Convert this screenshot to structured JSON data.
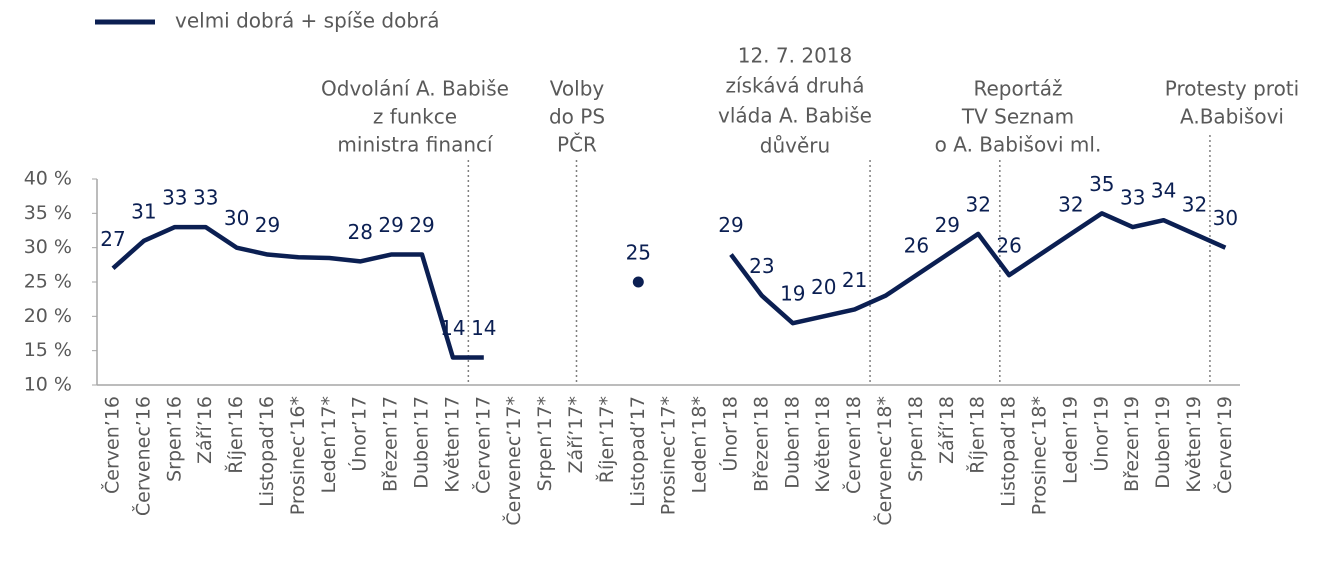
{
  "chart_data": {
    "type": "line",
    "categories": [
      "Červen’16",
      "Červenec’16",
      "Srpen’16",
      "Září’16",
      "Říjen’16",
      "Listopad’16",
      "Prosinec’16*",
      "Leden’17*",
      "Únor’17",
      "Březen’17",
      "Duben’17",
      "Květen’17",
      "Červen’17",
      "Červenec’17*",
      "Srpen’17*",
      "Září’17*",
      "Říjen’17*",
      "Listopad’17",
      "Prosinec’17*",
      "Leden’18*",
      "Únor’18",
      "Březen’18",
      "Duben’18",
      "Květen’18",
      "Červen’18",
      "Červenec’18*",
      "Srpen’18",
      "Září’18",
      "Říjen’18",
      "Listopad’18",
      "Prosinec’18*",
      "Leden’19",
      "Únor’19",
      "Březen’19",
      "Duben’19",
      "Květen’19",
      "Červen’19"
    ],
    "series": [
      {
        "name": "velmi dobrá + spíše dobrá",
        "color": "#0b1f52",
        "values": [
          27,
          31,
          33,
          33,
          30,
          29,
          28.6,
          28.5,
          28,
          29,
          29,
          14,
          14,
          null,
          null,
          null,
          null,
          25,
          null,
          null,
          29,
          23,
          19,
          20,
          21,
          23,
          26,
          29,
          32,
          26,
          29,
          32,
          35,
          33,
          34,
          32,
          30
        ],
        "value_labels": [
          "27",
          "31",
          "33",
          "33",
          "30",
          "29",
          null,
          null,
          "28",
          "29",
          "29",
          "14",
          "14",
          null,
          null,
          null,
          null,
          "25",
          null,
          null,
          "29",
          "23",
          "19",
          "20",
          "21",
          null,
          "26",
          "29",
          "32",
          "26",
          null,
          "32",
          "35",
          "33",
          "34",
          "32",
          "30"
        ]
      }
    ],
    "ylim": [
      10,
      40
    ],
    "yticks": [
      {
        "value": 10,
        "label": "10 %"
      },
      {
        "value": 15,
        "label": "15 %"
      },
      {
        "value": 20,
        "label": "20 %"
      },
      {
        "value": 25,
        "label": "25 %"
      },
      {
        "value": 30,
        "label": "30 %"
      },
      {
        "value": 35,
        "label": "35 %"
      },
      {
        "value": 40,
        "label": "40 %"
      }
    ],
    "annotations": [
      {
        "lines": [
          "Odvolání A. Babiše",
          "z funkce",
          "ministra financí"
        ]
      },
      {
        "lines": [
          "Volby",
          "do PS",
          "PČR"
        ]
      },
      {
        "lines": [
          "12. 7. 2018",
          "získává druhá",
          "vláda A. Babiše",
          "důvěru"
        ]
      },
      {
        "lines": [
          "Reportáž",
          "TV Seznam",
          "o A. Babišovi ml."
        ]
      },
      {
        "lines": [
          "Protesty proti",
          "A.Babišovi"
        ]
      }
    ]
  }
}
